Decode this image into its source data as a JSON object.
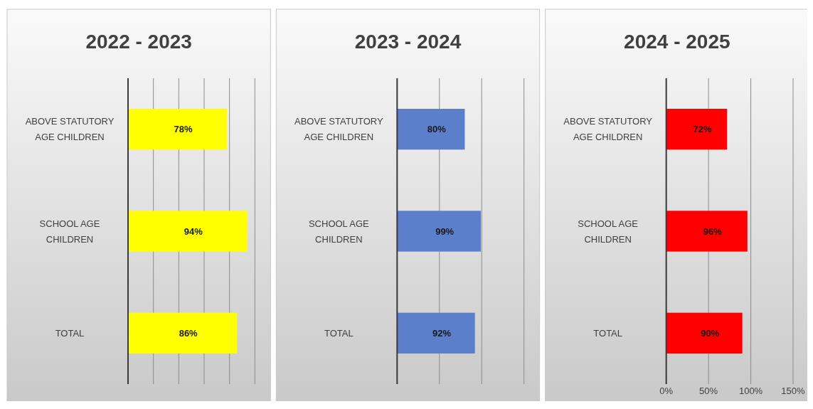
{
  "chart_data": [
    {
      "type": "bar",
      "orientation": "horizontal",
      "title": "2022 - 2023",
      "categories": [
        "ABOVE STATUTORY AGE CHILDREN",
        "SCHOOL AGE CHILDREN",
        "TOTAL"
      ],
      "series": [
        {
          "color": "#ffff00",
          "values": [
            78,
            94,
            86
          ],
          "value_labels": [
            "78%",
            "94%",
            "86%"
          ]
        }
      ],
      "xlim": [
        0,
        100
      ],
      "xticks": [
        {
          "value": 0,
          "label": null
        },
        {
          "value": 20,
          "label": null
        },
        {
          "value": 40,
          "label": null
        },
        {
          "value": 60,
          "label": null
        },
        {
          "value": 80,
          "label": null
        },
        {
          "value": 100,
          "label": null
        }
      ],
      "grid": "x",
      "tick_labels": "y"
    },
    {
      "type": "bar",
      "orientation": "horizontal",
      "title": "2023 - 2024",
      "categories": [
        "ABOVE STATUTORY AGE CHILDREN",
        "SCHOOL AGE CHILDREN",
        "TOTAL"
      ],
      "series": [
        {
          "color": "#5b7fcb",
          "values": [
            80,
            99,
            92
          ],
          "value_labels": [
            "80%",
            "99%",
            "92%"
          ]
        }
      ],
      "xlim": [
        0,
        150
      ],
      "xticks": [
        {
          "value": 0,
          "label": null
        },
        {
          "value": 50,
          "label": null
        },
        {
          "value": 100,
          "label": null
        },
        {
          "value": 150,
          "label": null
        }
      ],
      "grid": "x",
      "tick_labels": "y"
    },
    {
      "type": "bar",
      "orientation": "horizontal",
      "title": "2024 - 2025",
      "categories": [
        "ABOVE STATUTORY AGE CHILDREN",
        "SCHOOL AGE CHILDREN",
        "TOTAL"
      ],
      "series": [
        {
          "color": "#ff0000",
          "values": [
            72,
            96,
            90
          ],
          "value_labels": [
            "72%",
            "96%",
            "90%"
          ]
        }
      ],
      "xlim": [
        0,
        150
      ],
      "xticks": [
        {
          "value": 0,
          "label": "0%"
        },
        {
          "value": 50,
          "label": "50%"
        },
        {
          "value": 100,
          "label": "100%"
        },
        {
          "value": 150,
          "label": "150%"
        }
      ],
      "grid": "x"
    }
  ]
}
